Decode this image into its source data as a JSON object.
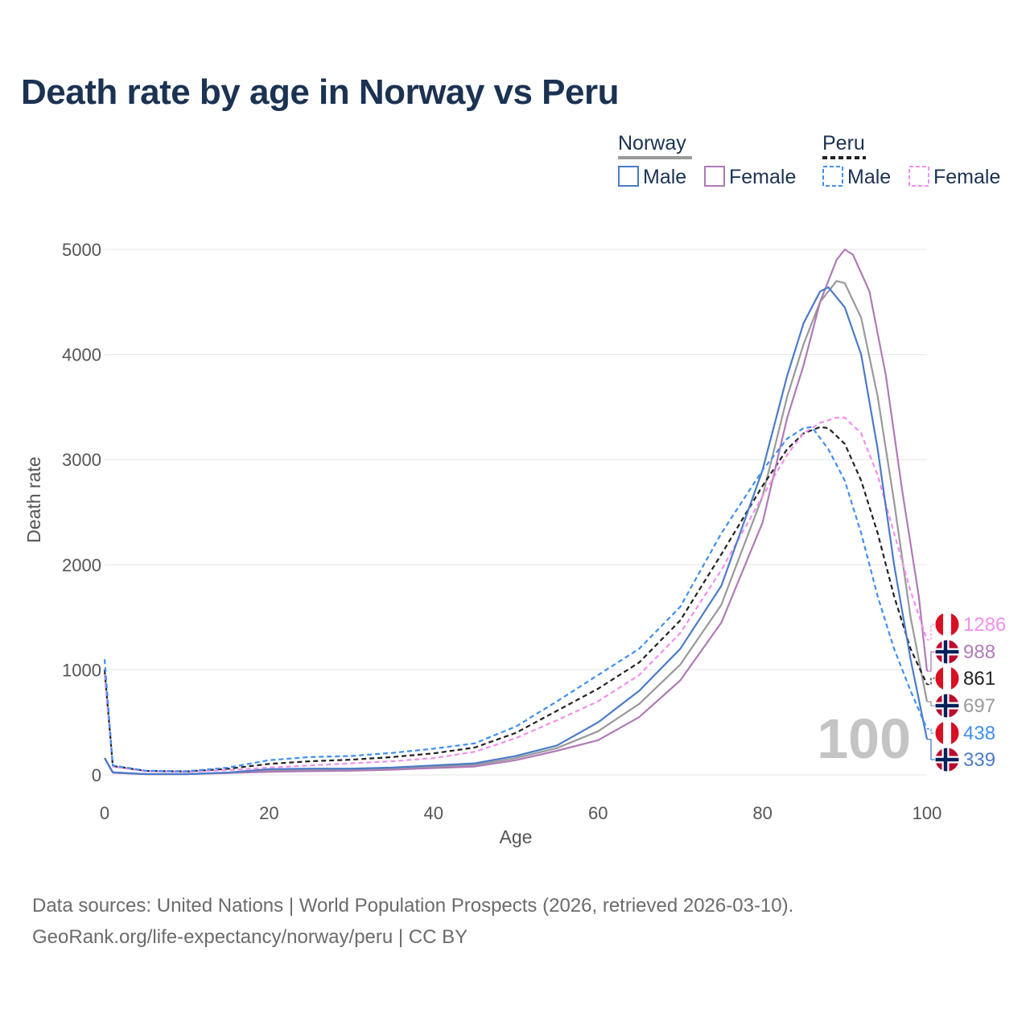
{
  "title": "Death rate by age in Norway vs Peru",
  "legend": {
    "groups": [
      {
        "name": "Norway",
        "items": [
          "Male",
          "Female"
        ]
      },
      {
        "name": "Peru",
        "items": [
          "Male",
          "Female"
        ]
      }
    ]
  },
  "colors": {
    "norway_male": "#4a7bc8",
    "norway_female": "#b07ab8",
    "norway_total": "#999999",
    "peru_male": "#3f8ff0",
    "peru_female": "#f28ef0",
    "peru_total": "#222222",
    "title": "#1b3252",
    "grid": "#e6e6e6",
    "flag_red": "#d91023",
    "flag_norway_red": "#ba0c2f",
    "flag_norway_blue": "#00205b"
  },
  "chart_data": {
    "type": "line",
    "xlabel": "Age",
    "ylabel": "Death rate",
    "xlim": [
      0,
      100
    ],
    "ylim": [
      0,
      5000
    ],
    "x_ticks": [
      0,
      20,
      40,
      60,
      80,
      100
    ],
    "y_ticks": [
      0,
      1000,
      2000,
      3000,
      4000,
      5000
    ],
    "watermark_year": "100",
    "series": [
      {
        "key": "norway_male",
        "country": "Norway",
        "name": "Male",
        "dashed": false,
        "points": [
          [
            0,
            160
          ],
          [
            1,
            25
          ],
          [
            5,
            8
          ],
          [
            10,
            8
          ],
          [
            15,
            22
          ],
          [
            20,
            55
          ],
          [
            25,
            60
          ],
          [
            30,
            60
          ],
          [
            35,
            70
          ],
          [
            40,
            90
          ],
          [
            45,
            110
          ],
          [
            50,
            180
          ],
          [
            55,
            280
          ],
          [
            60,
            500
          ],
          [
            65,
            800
          ],
          [
            70,
            1200
          ],
          [
            75,
            1800
          ],
          [
            80,
            2900
          ],
          [
            83,
            3800
          ],
          [
            85,
            4300
          ],
          [
            87,
            4600
          ],
          [
            88,
            4640
          ],
          [
            90,
            4450
          ],
          [
            92,
            4000
          ],
          [
            94,
            3100
          ],
          [
            96,
            2000
          ],
          [
            98,
            1100
          ],
          [
            100,
            339
          ]
        ]
      },
      {
        "key": "norway_female",
        "country": "Norway",
        "name": "Female",
        "dashed": false,
        "points": [
          [
            0,
            160
          ],
          [
            1,
            20
          ],
          [
            5,
            8
          ],
          [
            10,
            8
          ],
          [
            15,
            18
          ],
          [
            20,
            30
          ],
          [
            25,
            35
          ],
          [
            30,
            40
          ],
          [
            35,
            50
          ],
          [
            40,
            65
          ],
          [
            45,
            80
          ],
          [
            50,
            140
          ],
          [
            55,
            230
          ],
          [
            60,
            330
          ],
          [
            65,
            550
          ],
          [
            70,
            900
          ],
          [
            75,
            1450
          ],
          [
            80,
            2400
          ],
          [
            83,
            3400
          ],
          [
            85,
            3900
          ],
          [
            87,
            4500
          ],
          [
            89,
            4900
          ],
          [
            90,
            5000
          ],
          [
            91,
            4950
          ],
          [
            93,
            4600
          ],
          [
            95,
            3800
          ],
          [
            97,
            2700
          ],
          [
            99,
            1700
          ],
          [
            100,
            988
          ]
        ]
      },
      {
        "key": "norway_total",
        "country": "Norway",
        "name": "Total",
        "dashed": false,
        "points": [
          [
            0,
            160
          ],
          [
            1,
            22
          ],
          [
            5,
            8
          ],
          [
            10,
            8
          ],
          [
            15,
            20
          ],
          [
            20,
            42
          ],
          [
            25,
            48
          ],
          [
            30,
            50
          ],
          [
            35,
            60
          ],
          [
            40,
            78
          ],
          [
            45,
            95
          ],
          [
            50,
            160
          ],
          [
            55,
            255
          ],
          [
            60,
            415
          ],
          [
            65,
            675
          ],
          [
            70,
            1050
          ],
          [
            75,
            1620
          ],
          [
            80,
            2650
          ],
          [
            83,
            3600
          ],
          [
            85,
            4100
          ],
          [
            87,
            4500
          ],
          [
            89,
            4700
          ],
          [
            90,
            4680
          ],
          [
            92,
            4350
          ],
          [
            94,
            3600
          ],
          [
            96,
            2600
          ],
          [
            98,
            1500
          ],
          [
            100,
            697
          ]
        ]
      },
      {
        "key": "peru_male",
        "country": "Peru",
        "name": "Male",
        "dashed": true,
        "points": [
          [
            0,
            1100
          ],
          [
            1,
            90
          ],
          [
            5,
            40
          ],
          [
            10,
            35
          ],
          [
            15,
            70
          ],
          [
            20,
            140
          ],
          [
            25,
            170
          ],
          [
            30,
            180
          ],
          [
            35,
            210
          ],
          [
            40,
            250
          ],
          [
            45,
            300
          ],
          [
            50,
            460
          ],
          [
            55,
            700
          ],
          [
            60,
            950
          ],
          [
            65,
            1200
          ],
          [
            70,
            1600
          ],
          [
            75,
            2300
          ],
          [
            80,
            2900
          ],
          [
            83,
            3200
          ],
          [
            85,
            3300
          ],
          [
            86,
            3310
          ],
          [
            88,
            3100
          ],
          [
            90,
            2800
          ],
          [
            92,
            2300
          ],
          [
            94,
            1700
          ],
          [
            96,
            1200
          ],
          [
            98,
            800
          ],
          [
            100,
            438
          ]
        ]
      },
      {
        "key": "peru_female",
        "country": "Peru",
        "name": "Female",
        "dashed": true,
        "points": [
          [
            0,
            950
          ],
          [
            1,
            80
          ],
          [
            5,
            35
          ],
          [
            10,
            30
          ],
          [
            15,
            45
          ],
          [
            20,
            70
          ],
          [
            25,
            90
          ],
          [
            30,
            110
          ],
          [
            35,
            130
          ],
          [
            40,
            160
          ],
          [
            45,
            220
          ],
          [
            50,
            350
          ],
          [
            55,
            520
          ],
          [
            60,
            700
          ],
          [
            65,
            950
          ],
          [
            70,
            1350
          ],
          [
            75,
            1950
          ],
          [
            80,
            2650
          ],
          [
            83,
            3050
          ],
          [
            85,
            3250
          ],
          [
            87,
            3350
          ],
          [
            89,
            3400
          ],
          [
            90,
            3400
          ],
          [
            92,
            3250
          ],
          [
            94,
            2850
          ],
          [
            96,
            2300
          ],
          [
            98,
            1750
          ],
          [
            100,
            1286
          ]
        ]
      },
      {
        "key": "peru_total",
        "country": "Peru",
        "name": "Total",
        "dashed": true,
        "points": [
          [
            0,
            1000
          ],
          [
            1,
            85
          ],
          [
            5,
            38
          ],
          [
            10,
            33
          ],
          [
            15,
            58
          ],
          [
            20,
            105
          ],
          [
            25,
            130
          ],
          [
            30,
            145
          ],
          [
            35,
            170
          ],
          [
            40,
            205
          ],
          [
            45,
            260
          ],
          [
            50,
            400
          ],
          [
            55,
            610
          ],
          [
            60,
            820
          ],
          [
            65,
            1070
          ],
          [
            70,
            1470
          ],
          [
            75,
            2100
          ],
          [
            80,
            2750
          ],
          [
            83,
            3100
          ],
          [
            85,
            3250
          ],
          [
            87,
            3310
          ],
          [
            88,
            3300
          ],
          [
            90,
            3150
          ],
          [
            92,
            2800
          ],
          [
            94,
            2300
          ],
          [
            96,
            1700
          ],
          [
            98,
            1200
          ],
          [
            100,
            861
          ]
        ]
      }
    ],
    "end_labels": [
      {
        "value": "1286",
        "country": "Peru",
        "series": "peru_female"
      },
      {
        "value": "988",
        "country": "Norway",
        "series": "norway_female"
      },
      {
        "value": "861",
        "country": "Peru",
        "series": "peru_total"
      },
      {
        "value": "697",
        "country": "Norway",
        "series": "norway_total"
      },
      {
        "value": "438",
        "country": "Peru",
        "series": "peru_male"
      },
      {
        "value": "339",
        "country": "Norway",
        "series": "norway_male"
      }
    ]
  },
  "source": {
    "line1": "Data sources: United Nations | World Population Prospects (2026, retrieved 2026-03-10).",
    "line2": "GeoRank.org/life-expectancy/norway/peru | CC BY"
  }
}
